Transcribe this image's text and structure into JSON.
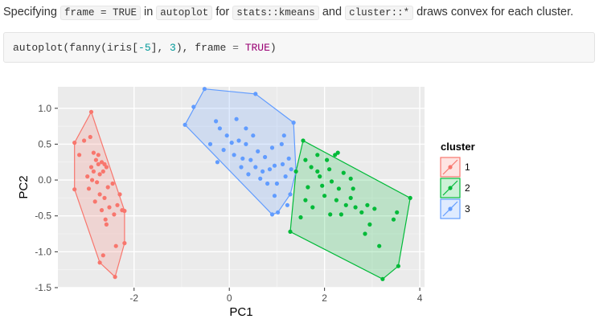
{
  "intro": {
    "p1": "Specifying ",
    "c1": "frame = TRUE",
    "p2": " in ",
    "c2": "autoplot",
    "p3": " for ",
    "c3": "stats::kmeans",
    "p4": " and ",
    "c4": "cluster::*",
    "p5": " draws convex for each cluster."
  },
  "code": {
    "t1": "autoplot(fanny(iris[",
    "t2": "-5",
    "t3": "], ",
    "t4": "3",
    "t5": "), frame ",
    "t6": "=",
    "t7": " ",
    "t8": "TRUE",
    "t9": ")"
  },
  "colors": {
    "cluster1": "#F8766D",
    "cluster2": "#00BA38",
    "cluster3": "#619CFF",
    "panel": "#EBEBEB",
    "grid": "#FFFFFF"
  },
  "chart_data": {
    "type": "scatter",
    "title": "",
    "xlabel": "PC1",
    "ylabel": "PC2",
    "xlim": [
      -3.6,
      4.1
    ],
    "ylim": [
      -1.5,
      1.3
    ],
    "xticks": [
      -2,
      0,
      2,
      4
    ],
    "yticks": [
      1.0,
      0.5,
      0.0,
      -0.5,
      -1.0,
      -1.5
    ],
    "xtick_labels": [
      "-2",
      "0",
      "2",
      "4"
    ],
    "ytick_labels": [
      "1.0",
      "0.5",
      "0.0",
      "-0.5",
      "-1.0",
      "-1.5"
    ],
    "grid": true,
    "legend": {
      "title": "cluster",
      "position": "right",
      "labels": [
        "1",
        "2",
        "3"
      ]
    },
    "series": [
      {
        "name": "1",
        "hull": [
          [
            -2.9,
            0.95
          ],
          [
            -3.25,
            0.52
          ],
          [
            -3.25,
            -0.13
          ],
          [
            -2.72,
            -1.15
          ],
          [
            -2.4,
            -1.35
          ],
          [
            -2.2,
            -0.88
          ],
          [
            -2.2,
            -0.43
          ]
        ],
        "points": [
          [
            -2.9,
            0.95
          ],
          [
            -3.25,
            0.52
          ],
          [
            -3.25,
            -0.13
          ],
          [
            -2.72,
            -1.15
          ],
          [
            -2.4,
            -1.35
          ],
          [
            -2.2,
            -0.88
          ],
          [
            -2.2,
            -0.43
          ],
          [
            -3.05,
            0.55
          ],
          [
            -2.92,
            0.6
          ],
          [
            -2.85,
            0.38
          ],
          [
            -3.15,
            0.35
          ],
          [
            -2.8,
            0.28
          ],
          [
            -2.75,
            0.22
          ],
          [
            -2.68,
            0.25
          ],
          [
            -2.62,
            0.22
          ],
          [
            -2.58,
            0.18
          ],
          [
            -2.85,
            0.12
          ],
          [
            -2.72,
            0.08
          ],
          [
            -2.65,
            0.12
          ],
          [
            -2.98,
            0.05
          ],
          [
            -2.88,
            0.0
          ],
          [
            -2.78,
            -0.03
          ],
          [
            -2.55,
            -0.1
          ],
          [
            -2.95,
            -0.12
          ],
          [
            -2.72,
            -0.2
          ],
          [
            -2.45,
            -0.05
          ],
          [
            -2.62,
            -0.25
          ],
          [
            -2.82,
            -0.3
          ],
          [
            -2.52,
            -0.38
          ],
          [
            -2.35,
            -0.35
          ],
          [
            -2.42,
            -0.48
          ],
          [
            -2.68,
            -0.42
          ],
          [
            -2.6,
            -0.55
          ],
          [
            -2.58,
            -0.62
          ],
          [
            -2.3,
            -0.2
          ],
          [
            -2.38,
            -0.92
          ],
          [
            -2.65,
            -1.05
          ],
          [
            -2.75,
            0.35
          ],
          [
            -2.25,
            -0.42
          ],
          [
            -2.9,
            0.18
          ]
        ]
      },
      {
        "name": "2",
        "hull": [
          [
            1.55,
            0.55
          ],
          [
            3.8,
            -0.25
          ],
          [
            3.55,
            -1.2
          ],
          [
            3.22,
            -1.38
          ],
          [
            1.28,
            -0.72
          ],
          [
            1.4,
            0.12
          ]
        ],
        "points": [
          [
            1.55,
            0.55
          ],
          [
            3.8,
            -0.25
          ],
          [
            3.55,
            -1.2
          ],
          [
            3.22,
            -1.38
          ],
          [
            1.28,
            -0.72
          ],
          [
            1.4,
            0.12
          ],
          [
            1.6,
            0.28
          ],
          [
            1.85,
            0.35
          ],
          [
            2.05,
            0.28
          ],
          [
            2.22,
            0.35
          ],
          [
            2.28,
            0.38
          ],
          [
            2.1,
            0.15
          ],
          [
            2.4,
            0.1
          ],
          [
            1.72,
            0.18
          ],
          [
            1.9,
            0.05
          ],
          [
            1.95,
            -0.08
          ],
          [
            2.15,
            -0.02
          ],
          [
            2.3,
            -0.12
          ],
          [
            2.55,
            0.02
          ],
          [
            2.0,
            -0.22
          ],
          [
            2.25,
            -0.28
          ],
          [
            2.45,
            -0.35
          ],
          [
            2.55,
            -0.25
          ],
          [
            2.65,
            -0.38
          ],
          [
            2.78,
            -0.45
          ],
          [
            2.9,
            -0.35
          ],
          [
            3.05,
            -0.4
          ],
          [
            1.6,
            -0.28
          ],
          [
            1.75,
            -0.38
          ],
          [
            1.5,
            -0.52
          ],
          [
            1.65,
            -0.1
          ],
          [
            2.35,
            -0.48
          ],
          [
            2.95,
            -0.62
          ],
          [
            3.45,
            -0.55
          ],
          [
            3.52,
            -0.45
          ],
          [
            3.15,
            -0.92
          ],
          [
            2.85,
            -0.75
          ],
          [
            1.85,
            0.12
          ],
          [
            2.6,
            -0.12
          ],
          [
            2.12,
            -0.48
          ]
        ]
      },
      {
        "name": "3",
        "hull": [
          [
            -0.52,
            1.27
          ],
          [
            0.55,
            1.2
          ],
          [
            1.35,
            0.8
          ],
          [
            1.4,
            0.12
          ],
          [
            1.28,
            -0.2
          ],
          [
            1.02,
            -0.45
          ],
          [
            0.9,
            -0.48
          ],
          [
            -0.93,
            0.77
          ]
        ],
        "points": [
          [
            -0.52,
            1.27
          ],
          [
            0.55,
            1.2
          ],
          [
            1.35,
            0.8
          ],
          [
            1.28,
            -0.2
          ],
          [
            1.02,
            -0.45
          ],
          [
            0.9,
            -0.48
          ],
          [
            -0.93,
            0.77
          ],
          [
            -0.75,
            1.02
          ],
          [
            -0.28,
            0.82
          ],
          [
            -0.2,
            0.72
          ],
          [
            0.15,
            0.85
          ],
          [
            0.35,
            0.72
          ],
          [
            0.5,
            0.62
          ],
          [
            -0.05,
            0.62
          ],
          [
            0.05,
            0.52
          ],
          [
            0.2,
            0.55
          ],
          [
            0.35,
            0.5
          ],
          [
            -0.12,
            0.42
          ],
          [
            0.1,
            0.35
          ],
          [
            0.28,
            0.3
          ],
          [
            0.45,
            0.28
          ],
          [
            0.6,
            0.4
          ],
          [
            0.75,
            0.32
          ],
          [
            0.9,
            0.45
          ],
          [
            1.1,
            0.5
          ],
          [
            1.25,
            0.3
          ],
          [
            1.12,
            0.22
          ],
          [
            0.95,
            0.2
          ],
          [
            0.85,
            0.15
          ],
          [
            0.7,
            0.12
          ],
          [
            0.55,
            0.18
          ],
          [
            0.65,
            0.02
          ],
          [
            0.8,
            -0.05
          ],
          [
            1.0,
            -0.05
          ],
          [
            1.18,
            0.05
          ],
          [
            1.3,
            0.15
          ],
          [
            0.95,
            -0.22
          ],
          [
            1.22,
            -0.35
          ],
          [
            -0.25,
            0.25
          ],
          [
            -0.4,
            0.5
          ],
          [
            0.25,
            0.18
          ],
          [
            0.4,
            0.08
          ],
          [
            1.15,
            0.62
          ]
        ]
      }
    ]
  }
}
